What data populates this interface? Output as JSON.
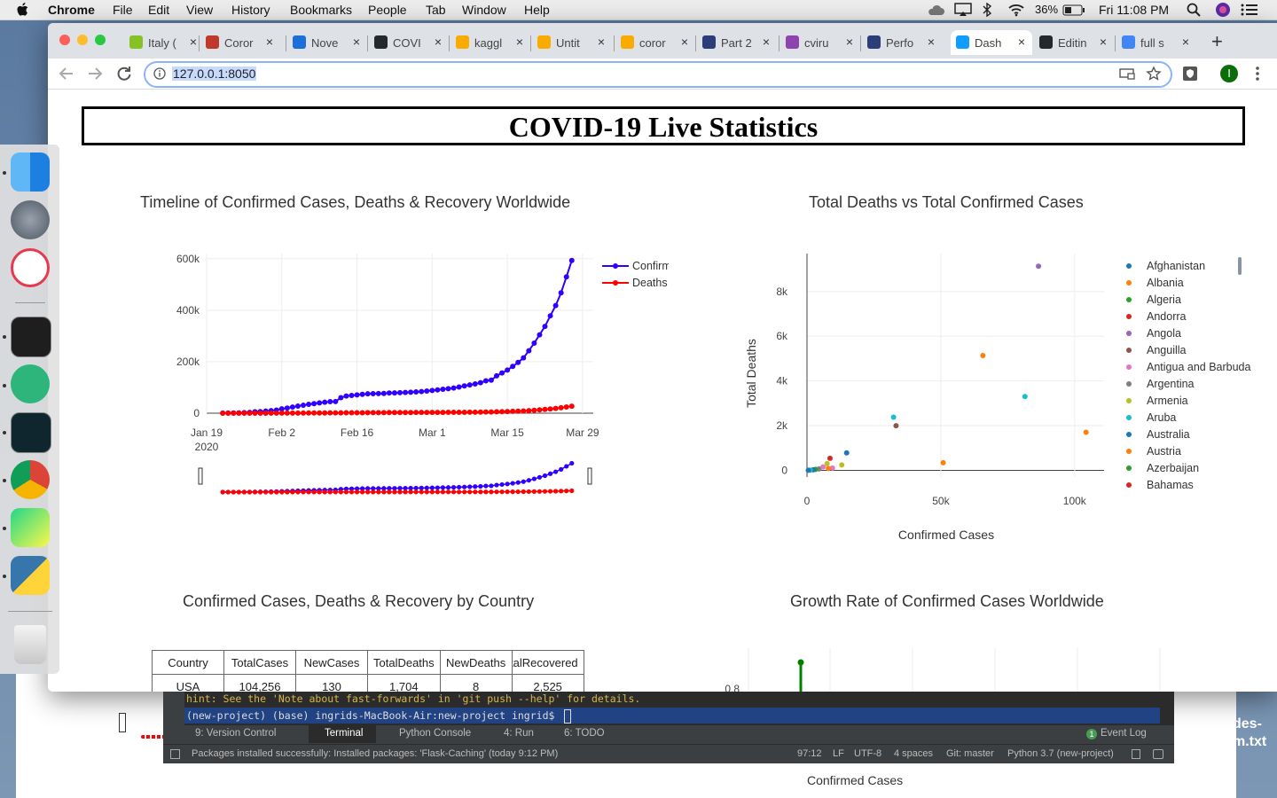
{
  "menubar": {
    "app_name": "Chrome",
    "menus": [
      "File",
      "Edit",
      "View",
      "History",
      "Bookmarks",
      "People",
      "Tab",
      "Window",
      "Help"
    ],
    "battery": "36%",
    "clock": "Fri 11:08 PM"
  },
  "browser": {
    "tabs": [
      {
        "label": "Italy (",
        "icon": "wordpress-favicon",
        "color": "#85c225"
      },
      {
        "label": "Coror",
        "icon": "acrobat-favicon",
        "color": "#c0392b"
      },
      {
        "label": "Nove",
        "icon": "k-favicon",
        "color": "#1c6fd8"
      },
      {
        "label": "COVI",
        "icon": "github-favicon",
        "color": "#24292e"
      },
      {
        "label": "kaggl",
        "icon": "colab-favicon",
        "color": "#f9ab00"
      },
      {
        "label": "Untit",
        "icon": "colab-favicon",
        "color": "#f9ab00"
      },
      {
        "label": "coror",
        "icon": "colab-favicon",
        "color": "#f9ab00"
      },
      {
        "label": "Part 2",
        "icon": "chart-favicon",
        "color": "#2c3e7a"
      },
      {
        "label": "cviru",
        "icon": "h-favicon",
        "color": "#8e44ad"
      },
      {
        "label": "Perfo",
        "icon": "chart-favicon",
        "color": "#2c3e7a"
      },
      {
        "label": "Dash",
        "icon": "dash-favicon",
        "color": "#119dff",
        "active": true
      },
      {
        "label": "Editin",
        "icon": "github-favicon",
        "color": "#24292e"
      },
      {
        "label": "full s",
        "icon": "google-favicon",
        "color": "#4285f4"
      }
    ],
    "url": "127.0.0.1:8050",
    "profile_initial": "I"
  },
  "page": {
    "title": "COVID-19 Live Statistics",
    "timeline_title": "Timeline of Confirmed Cases, Deaths & Recovery Worldwide",
    "scatter_title": "Total Deaths vs Total Confirmed Cases",
    "table_title": "Confirmed Cases, Deaths & Recovery by Country",
    "growth_title": "Growth Rate of Confirmed Cases Worldwide",
    "table": {
      "headers": [
        "Country",
        "TotalCases",
        "NewCases",
        "TotalDeaths",
        "NewDeaths",
        "TotalRecovered"
      ],
      "rows": [
        [
          "USA",
          "104,256",
          "130",
          "1,704",
          "8",
          "2,525"
        ]
      ]
    },
    "growth_tick": "0.8"
  },
  "chart_data": [
    {
      "type": "line",
      "title": "Timeline of Confirmed Cases, Deaths & Recovery Worldwide",
      "x_ticks": [
        "Jan 19\n2020",
        "Feb 2",
        "Feb 16",
        "Mar 1",
        "Mar 15",
        "Mar 29"
      ],
      "y_ticks": [
        "0",
        "200k",
        "400k",
        "600k"
      ],
      "ylim": [
        0,
        620000
      ],
      "x_range_days": [
        0,
        72
      ],
      "x_first_day": 3,
      "series": [
        {
          "name": "Confirmed",
          "color": "#2f00ff",
          "values": [
            555,
            654,
            941,
            1434,
            2118,
            2927,
            5578,
            6166,
            8234,
            9927,
            12038,
            16787,
            19881,
            23892,
            27635,
            30794,
            34391,
            37120,
            40150,
            42762,
            44802,
            45221,
            60368,
            66885,
            69030,
            71224,
            73258,
            75136,
            75639,
            76197,
            76819,
            78572,
            78958,
            79561,
            80406,
            81388,
            82746,
            84112,
            86011,
            88369,
            90306,
            92840,
            95120,
            97886,
            101800,
            105836,
            109835,
            113588,
            118582,
            125865,
            128343,
            145193,
            156097,
            167454,
            181574,
            197102,
            214821,
            242570,
            272208,
            304507,
            336953,
            378235,
            418045,
            467653,
            529591,
            593291
          ]
        },
        {
          "name": "Deaths",
          "color": "#ff0000",
          "values": [
            17,
            18,
            26,
            42,
            56,
            82,
            131,
            133,
            171,
            213,
            259,
            362,
            426,
            492,
            564,
            634,
            719,
            806,
            906,
            1013,
            1113,
            1118,
            1371,
            1523,
            1666,
            1770,
            1868,
            2007,
            2122,
            2247,
            2251,
            2458,
            2469,
            2629,
            2708,
            2770,
            2814,
            2872,
            2941,
            2996,
            3085,
            3160,
            3254,
            3348,
            3460,
            3558,
            3802,
            3988,
            4262,
            4615,
            4720,
            5404,
            5819,
            6440,
            7126,
            7905,
            8733,
            9867,
            11299,
            12973,
            14651,
            16505,
            18625,
            21181,
            23970,
            27198
          ]
        }
      ]
    },
    {
      "type": "scatter",
      "title": "Total Deaths vs Total Confirmed Cases",
      "xlabel": "Confirmed Cases",
      "ylabel": "Total Deaths",
      "xlim": [
        0,
        111000
      ],
      "ylim": [
        -300,
        9700
      ],
      "x_ticks": [
        "0",
        "50k",
        "100k"
      ],
      "y_ticks": [
        "0",
        "2k",
        "4k",
        "6k",
        "8k"
      ],
      "legend": [
        "Afghanistan",
        "Albania",
        "Algeria",
        "Andorra",
        "Angola",
        "Anguilla",
        "Antigua and Barbuda",
        "Argentina",
        "Armenia",
        "Aruba",
        "Australia",
        "Austria",
        "Azerbaijan",
        "Bahamas"
      ],
      "palette": [
        "#1f77b4",
        "#ff7f0e",
        "#2ca02c",
        "#d62728",
        "#9467bd",
        "#8c564b",
        "#e377c2",
        "#7f7f7f",
        "#bcbd22",
        "#17becf"
      ],
      "points": [
        {
          "x": 86498,
          "y": 9134,
          "c": 4
        },
        {
          "x": 65719,
          "y": 5138,
          "c": 1
        },
        {
          "x": 81439,
          "y": 3300,
          "c": 9
        },
        {
          "x": 32332,
          "y": 2378,
          "c": 9
        },
        {
          "x": 33276,
          "y": 1997,
          "c": 5
        },
        {
          "x": 104256,
          "y": 1704,
          "c": 1
        },
        {
          "x": 14814,
          "y": 780,
          "c": 0
        },
        {
          "x": 50871,
          "y": 342,
          "c": 1
        },
        {
          "x": 8600,
          "y": 540,
          "c": 3
        },
        {
          "x": 7500,
          "y": 300,
          "c": 8
        },
        {
          "x": 13000,
          "y": 240,
          "c": 8
        },
        {
          "x": 9500,
          "y": 100,
          "c": 6
        },
        {
          "x": 8000,
          "y": 80,
          "c": 1
        },
        {
          "x": 4500,
          "y": 60,
          "c": 7
        },
        {
          "x": 3200,
          "y": 40,
          "c": 2
        },
        {
          "x": 2300,
          "y": 20,
          "c": 0
        },
        {
          "x": 1200,
          "y": 10,
          "c": 9
        },
        {
          "x": 500,
          "y": 5,
          "c": 0
        },
        {
          "x": 6000,
          "y": 150,
          "c": 6
        }
      ]
    },
    {
      "type": "bar",
      "title": "Growth Rate of Confirmed Cases Worldwide",
      "y_ticks": [
        "0.8"
      ],
      "series": [
        {
          "color": "#008000",
          "values": [
            0.9
          ]
        }
      ]
    }
  ],
  "pycharm": {
    "hint_line": "hint: See the 'Note about fast-forwards' in 'git push --help' for details.",
    "prompt_line": "(new-project) (base) ingrids-MacBook-Air:new-project ingrid$",
    "tool_tabs": [
      "9: Version Control",
      "Terminal",
      "Python Console",
      "4: Run",
      "6: TODO"
    ],
    "event_log": "Event Log",
    "event_count": "1",
    "status_msg": "Packages installed successfully: Installed packages: 'Flask-Caching' (today 9:12 PM)",
    "position": "97:12",
    "line_sep": "LF",
    "encoding": "UTF-8",
    "indent": "4 spaces",
    "git": "Git: master",
    "interpreter": "Python 3.7 (new-project)"
  },
  "background_window": {
    "file_fragment_1": "des-",
    "file_fragment_2": "m.txt",
    "axis_label": "Confirmed Cases"
  }
}
